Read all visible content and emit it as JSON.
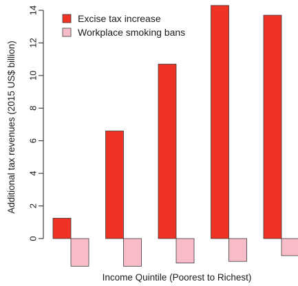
{
  "chart_data": {
    "type": "bar",
    "categories": [
      "",
      "",
      "",
      "",
      ""
    ],
    "series": [
      {
        "name": "Excise tax increase",
        "color": "#ee3224",
        "values": [
          1.25,
          6.6,
          10.7,
          14.3,
          13.7
        ]
      },
      {
        "name": "Workplace smoking bans",
        "color": "#f8bcc9",
        "values": [
          -1.7,
          -1.7,
          -1.5,
          -1.4,
          -1.05
        ]
      }
    ],
    "title": "",
    "xlabel": "Income Quintile (Poorest to Richest)",
    "ylabel": "Additional tax revenues (2015 US$ billion)",
    "ylim": [
      -1.7,
      14.3
    ],
    "yticks": [
      0,
      2,
      4,
      6,
      8,
      10,
      12,
      14
    ],
    "ytick_labels": [
      "0",
      "2",
      "4",
      "6",
      "8",
      "10",
      "12",
      "14"
    ],
    "grid": false,
    "legend_position": "top-left"
  }
}
